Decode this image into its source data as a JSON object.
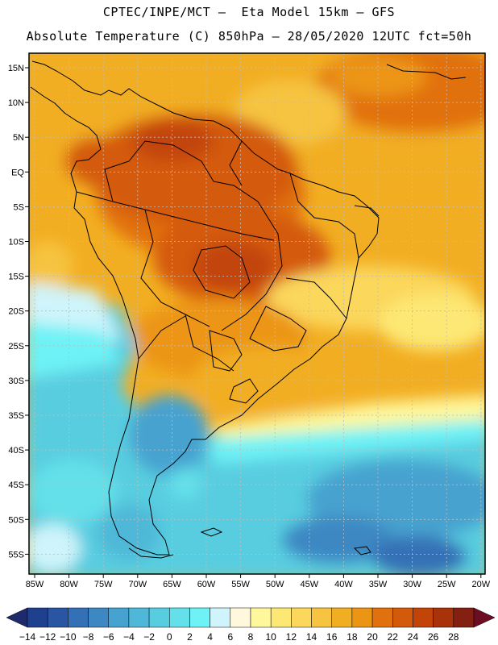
{
  "header": {
    "line1": "CPTEC/INPE/MCT –  Eta Model 15km – GFS",
    "line2": "Absolute Temperature (C) 850hPa – 28/05/2020 12UTC fct=50h"
  },
  "map": {
    "lat_labels": [
      "15N",
      "10N",
      "5N",
      "EQ",
      "5S",
      "10S",
      "15S",
      "20S",
      "25S",
      "30S",
      "35S",
      "40S",
      "45S",
      "50S",
      "55S"
    ],
    "lon_labels": [
      "85W",
      "80W",
      "75W",
      "70W",
      "65W",
      "60W",
      "55W",
      "50W",
      "45W",
      "40W",
      "35W",
      "30W",
      "25W",
      "20W"
    ],
    "grid": "dotted"
  },
  "colorbar": {
    "labels": [
      "-14",
      "-12",
      "-10",
      "-8",
      "-6",
      "-4",
      "-2",
      "0",
      "2",
      "4",
      "6",
      "8",
      "10",
      "12",
      "14",
      "16",
      "18",
      "20",
      "22",
      "24",
      "26",
      "28"
    ],
    "colors": [
      "#1f3f8f",
      "#2a55a3",
      "#3470b5",
      "#3d88c3",
      "#46a2cf",
      "#4fb8d8",
      "#58cde0",
      "#64e0ea",
      "#6ef2f6",
      "#cff4fb",
      "#fff8dc",
      "#fef79c",
      "#fde874",
      "#fbd75c",
      "#f6c441",
      "#f2ae22",
      "#ec9515",
      "#e1710e",
      "#d45a0b",
      "#c24409",
      "#a83209",
      "#832011"
    ]
  }
}
